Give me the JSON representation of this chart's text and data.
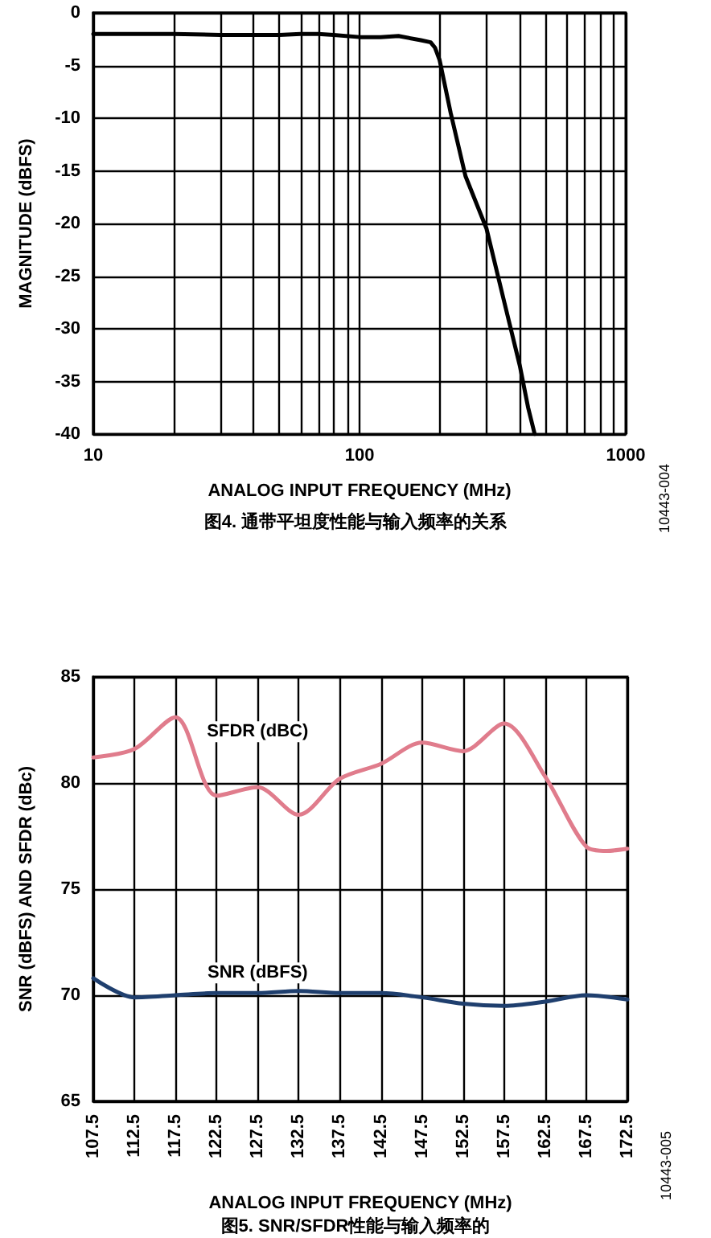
{
  "chart_data": [
    {
      "type": "line",
      "xlabel": "ANALOG INPUT FREQUENCY (MHz)",
      "ylabel": "MAGNITUDE (dBFS)",
      "log": "x",
      "grid": true,
      "legend": false,
      "marker": "none",
      "line_style": "solid",
      "xlim": [
        10,
        1000
      ],
      "xticks": [
        10,
        {
          "value": 20,
          "label": null
        },
        {
          "value": 30,
          "label": null
        },
        {
          "value": 40,
          "label": null
        },
        {
          "value": 50,
          "label": null
        },
        {
          "value": 60,
          "label": null
        },
        {
          "value": 70,
          "label": null
        },
        {
          "value": 80,
          "label": null
        },
        {
          "value": 90,
          "label": null
        },
        100,
        {
          "value": 200,
          "label": null
        },
        {
          "value": 300,
          "label": null
        },
        {
          "value": 400,
          "label": null
        },
        {
          "value": 500,
          "label": null
        },
        {
          "value": 600,
          "label": null
        },
        {
          "value": 700,
          "label": null
        },
        {
          "value": 800,
          "label": null
        },
        {
          "value": 900,
          "label": null
        },
        1000
      ],
      "ylim": [
        -40,
        0
      ],
      "yticks": [
        -40,
        -35,
        -30,
        -25,
        -20,
        -15,
        -10,
        -5,
        0
      ],
      "series": [
        {
          "color": "#000000",
          "x": [
            10,
            15,
            20,
            30,
            40,
            50,
            60,
            70,
            80,
            100,
            120,
            140,
            170,
            185,
            192,
            200,
            220,
            250,
            300,
            350,
            400,
            430,
            455
          ],
          "values": [
            -2.0,
            -2.0,
            -2.0,
            -2.1,
            -2.1,
            -2.1,
            -2.0,
            -2.0,
            -2.1,
            -2.3,
            -2.3,
            -2.2,
            -2.6,
            -2.8,
            -3.3,
            -4.5,
            -9.5,
            -15.5,
            -20.5,
            -27.5,
            -33.5,
            -37.5,
            -40
          ]
        }
      ],
      "annotations": [
        "10443-004",
        "图4. 通带平坦度性能与输入频率的关系"
      ]
    },
    {
      "type": "line",
      "xlabel": "ANALOG INPUT FREQUENCY (MHz)",
      "ylabel": "SNR (dBFS) AND SFDR (dBc)",
      "grid": true,
      "legend": false,
      "marker": "none",
      "line_style": "solid",
      "xlim": [
        107.5,
        172.5
      ],
      "xticks": [
        107.5,
        112.5,
        117.5,
        122.5,
        127.5,
        132.5,
        137.5,
        142.5,
        147.5,
        152.5,
        157.5,
        162.5,
        167.5,
        172.5
      ],
      "ylim": [
        65,
        85
      ],
      "yticks": [
        65,
        70,
        75,
        80,
        85
      ],
      "series": [
        {
          "name": "SFDR (dBC)",
          "color": "#e07c8c",
          "x": [
            107.5,
            112.5,
            117.5,
            122.5,
            127.5,
            132.5,
            137.5,
            142.5,
            147.5,
            152.5,
            157.5,
            162.5,
            167.5,
            170,
            172.5
          ],
          "values": [
            81.2,
            81.6,
            83.1,
            79.4,
            79.8,
            78.5,
            80.2,
            80.9,
            81.9,
            81.5,
            82.8,
            80.3,
            77.0,
            76.8,
            76.9
          ]
        },
        {
          "name": "SNR (dBFS)",
          "color": "#1f3f6e",
          "x": [
            107.5,
            112.5,
            117.5,
            122.5,
            127.5,
            132.5,
            137.5,
            142.5,
            147.5,
            152.5,
            157.5,
            162.5,
            167.5,
            172.5
          ],
          "values": [
            70.8,
            69.9,
            70.0,
            70.1,
            70.1,
            70.2,
            70.1,
            70.1,
            69.9,
            69.6,
            69.5,
            69.7,
            70.0,
            69.8
          ]
        }
      ],
      "annotations": [
        "10443-005",
        "图5. SNR/SFDR性能与输入频率的"
      ]
    }
  ]
}
